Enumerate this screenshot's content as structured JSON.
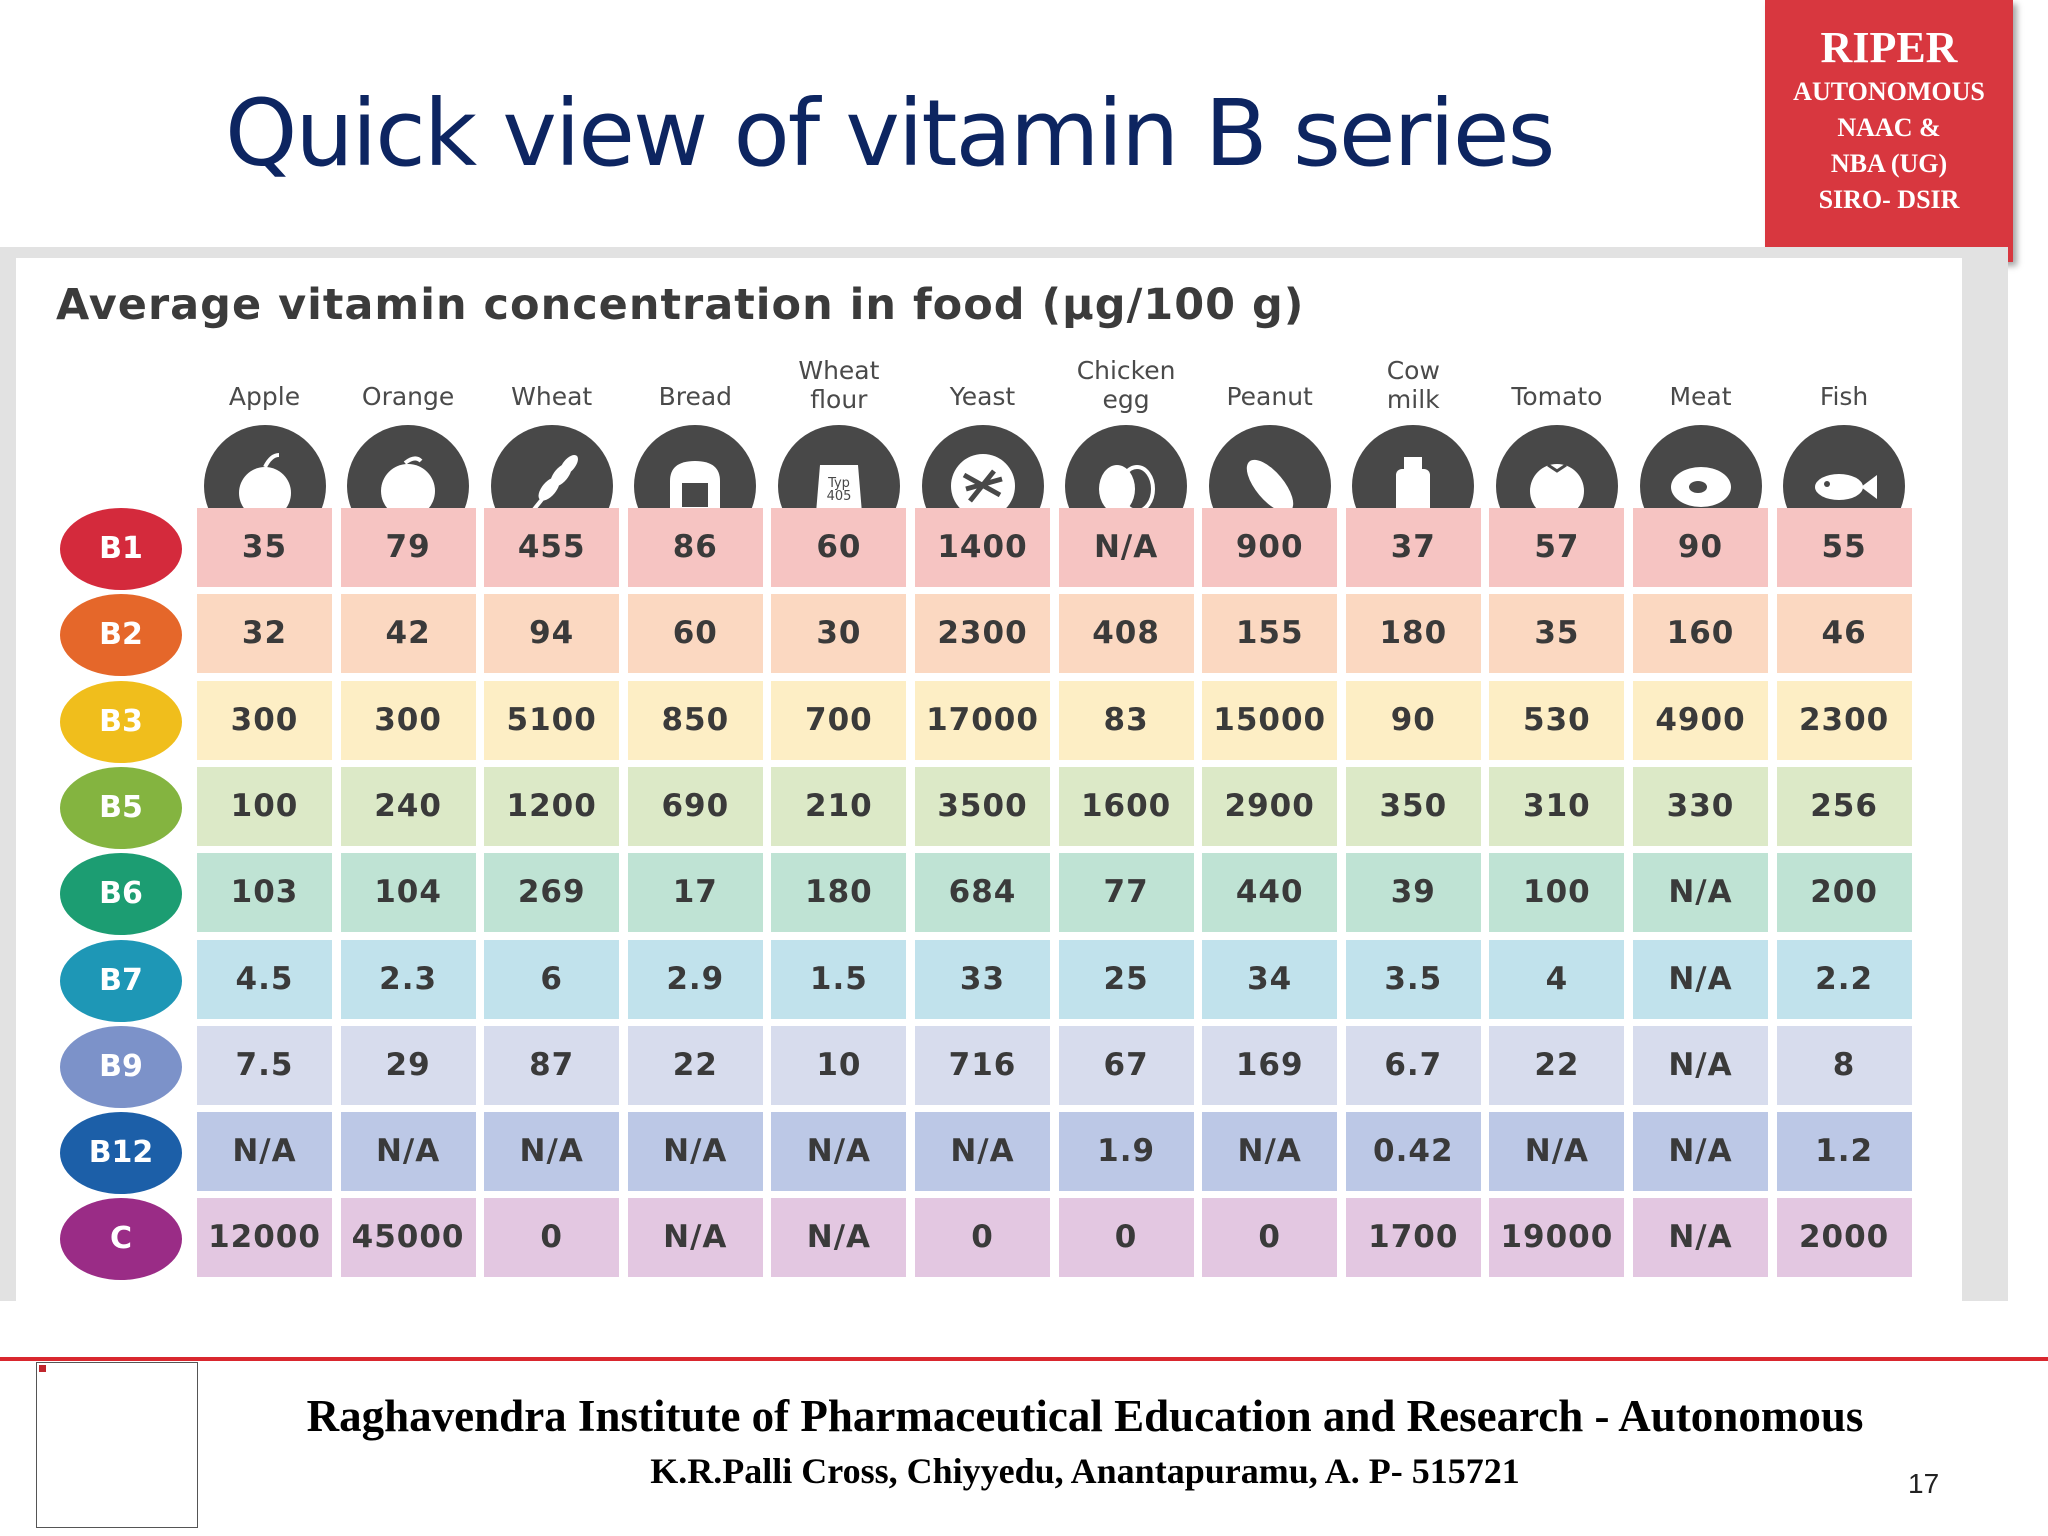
{
  "slide": {
    "title": "Quick view of vitamin B series",
    "page_number": "17"
  },
  "badge": {
    "line1": "RIPER",
    "line2": "AUTONOMOUS",
    "line3": "NAAC &",
    "line4": "NBA (UG)",
    "line5": "SIRO- DSIR"
  },
  "table": {
    "title": "Average vitamin concentration in food (µg/100 g)",
    "columns": [
      {
        "label": "Apple",
        "icon": "apple-icon"
      },
      {
        "label": "Orange",
        "icon": "orange-icon"
      },
      {
        "label": "Wheat",
        "icon": "wheat-icon"
      },
      {
        "label": "Bread",
        "icon": "bread-icon"
      },
      {
        "label": "Wheat\nflour",
        "icon": "flour-bag-icon",
        "icon_text": "Typ\n405"
      },
      {
        "label": "Yeast",
        "icon": "yeast-icon"
      },
      {
        "label": "Chicken\negg",
        "icon": "egg-icon"
      },
      {
        "label": "Peanut",
        "icon": "peanut-icon"
      },
      {
        "label": "Cow\nmilk",
        "icon": "milk-can-icon"
      },
      {
        "label": "Tomato",
        "icon": "tomato-icon"
      },
      {
        "label": "Meat",
        "icon": "meat-icon"
      },
      {
        "label": "Fish",
        "icon": "fish-icon"
      }
    ],
    "rows": [
      {
        "vitamin": "B1",
        "badge_color": "#d42a3c",
        "cell_color": "#f6c4c2",
        "values": [
          "35",
          "79",
          "455",
          "86",
          "60",
          "1400",
          "N/A",
          "900",
          "37",
          "57",
          "90",
          "55"
        ]
      },
      {
        "vitamin": "B2",
        "badge_color": "#e5672a",
        "cell_color": "#fbd8c1",
        "values": [
          "32",
          "42",
          "94",
          "60",
          "30",
          "2300",
          "408",
          "155",
          "180",
          "35",
          "160",
          "46"
        ]
      },
      {
        "vitamin": "B3",
        "badge_color": "#f0be1c",
        "cell_color": "#fdeec5",
        "values": [
          "300",
          "300",
          "5100",
          "850",
          "700",
          "17000",
          "83",
          "15000",
          "90",
          "530",
          "4900",
          "2300"
        ]
      },
      {
        "vitamin": "B5",
        "badge_color": "#84b440",
        "cell_color": "#dce9c7",
        "values": [
          "100",
          "240",
          "1200",
          "690",
          "210",
          "3500",
          "1600",
          "2900",
          "350",
          "310",
          "330",
          "256"
        ]
      },
      {
        "vitamin": "B6",
        "badge_color": "#1c9d72",
        "cell_color": "#bfe3d4",
        "values": [
          "103",
          "104",
          "269",
          "17",
          "180",
          "684",
          "77",
          "440",
          "39",
          "100",
          "N/A",
          "200"
        ]
      },
      {
        "vitamin": "B7",
        "badge_color": "#1e97b6",
        "cell_color": "#c1e2ec",
        "values": [
          "4.5",
          "2.3",
          "6",
          "2.9",
          "1.5",
          "33",
          "25",
          "34",
          "3.5",
          "4",
          "N/A",
          "2.2"
        ]
      },
      {
        "vitamin": "B9",
        "badge_color": "#7c92c9",
        "cell_color": "#d7dced",
        "values": [
          "7.5",
          "29",
          "87",
          "22",
          "10",
          "716",
          "67",
          "169",
          "6.7",
          "22",
          "N/A",
          "8"
        ]
      },
      {
        "vitamin": "B12",
        "badge_color": "#1c5fa8",
        "cell_color": "#bcc8e6",
        "values": [
          "N/A",
          "N/A",
          "N/A",
          "N/A",
          "N/A",
          "N/A",
          "1.9",
          "N/A",
          "0.42",
          "N/A",
          "N/A",
          "1.2"
        ]
      },
      {
        "vitamin": "C",
        "badge_color": "#9a2c86",
        "cell_color": "#e3c7e1",
        "values": [
          "12000",
          "45000",
          "0",
          "N/A",
          "N/A",
          "0",
          "0",
          "0",
          "1700",
          "19000",
          "N/A",
          "2000"
        ]
      }
    ]
  },
  "footer": {
    "institute": "Raghavendra Institute of Pharmaceutical Education and Research - Autonomous",
    "address": "K.R.Palli Cross, Chiyyedu, Anantapuramu, A. P- 515721"
  }
}
